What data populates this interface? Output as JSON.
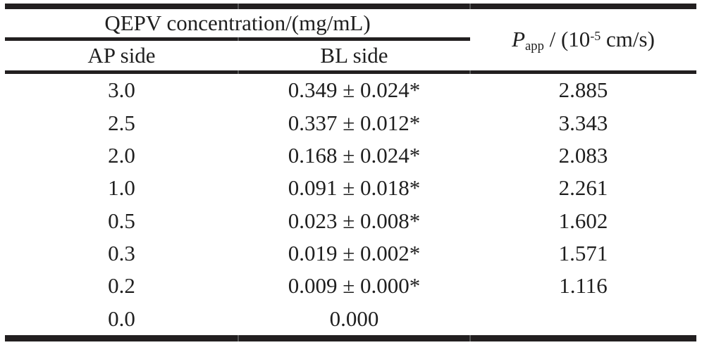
{
  "colors": {
    "bg": "#ffffff",
    "rule": "#221f20",
    "seam": "#555555",
    "text": "#1f1f1f"
  },
  "table": {
    "header": {
      "group_title": "QEPV concentration/(mg/mL)",
      "col_ap": "AP side",
      "col_bl": "BL side",
      "papp": {
        "symbol": "P",
        "subscript": "app",
        "mid": " / (10",
        "superscript": "-5",
        "end": " cm/s)"
      }
    },
    "rows": [
      {
        "ap": "3.0",
        "bl": "0.349 ± 0.024*",
        "papp": "2.885"
      },
      {
        "ap": "2.5",
        "bl": "0.337 ± 0.012*",
        "papp": "3.343"
      },
      {
        "ap": "2.0",
        "bl": "0.168 ± 0.024*",
        "papp": "2.083"
      },
      {
        "ap": "1.0",
        "bl": "0.091 ± 0.018*",
        "papp": "2.261"
      },
      {
        "ap": "0.5",
        "bl": "0.023 ± 0.008*",
        "papp": "1.602"
      },
      {
        "ap": "0.3",
        "bl": "0.019 ± 0.002*",
        "papp": "1.571"
      },
      {
        "ap": "0.2",
        "bl": "0.009 ± 0.000*",
        "papp": "1.116"
      },
      {
        "ap": "0.0",
        "bl": "0.000",
        "papp": ""
      }
    ]
  }
}
